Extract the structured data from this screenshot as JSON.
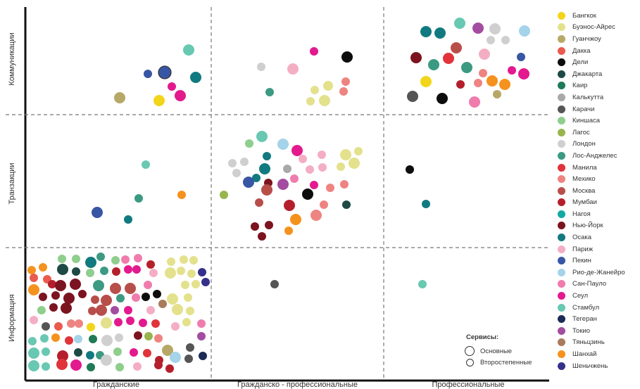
{
  "chart_data": {
    "type": "scatter",
    "x_categories": [
      "Гражданские",
      "Гражданско - профессиональные",
      "Профессиональные"
    ],
    "y_categories": [
      "Информация",
      "Транзакции",
      "Коммуникации"
    ],
    "grid": "dashed cell dividers",
    "legend_position": "right",
    "series": [
      {
        "name": "Бангкок",
        "color": "#f2d519"
      },
      {
        "name": "Буэнос-Айрес",
        "color": "#e3e18c"
      },
      {
        "name": "Гуанчжоу",
        "color": "#b7a867"
      },
      {
        "name": "Дакка",
        "color": "#ea5a4e"
      },
      {
        "name": "Дели",
        "color": "#0d0d0d"
      },
      {
        "name": "Джакарта",
        "color": "#1d4a44"
      },
      {
        "name": "Каир",
        "color": "#1f7a56"
      },
      {
        "name": "Калькутта",
        "color": "#a9a9a9"
      },
      {
        "name": "Карачи",
        "color": "#555555"
      },
      {
        "name": "Киншаса",
        "color": "#8fce8c"
      },
      {
        "name": "Лагос",
        "color": "#97b54c"
      },
      {
        "name": "Лондон",
        "color": "#cfcfcf"
      },
      {
        "name": "Лос-Анджелес",
        "color": "#3c9a82"
      },
      {
        "name": "Манила",
        "color": "#e0343a"
      },
      {
        "name": "Мехико",
        "color": "#ee8481"
      },
      {
        "name": "Москва",
        "color": "#b84e4a"
      },
      {
        "name": "Мумбаи",
        "color": "#b51f2c"
      },
      {
        "name": "Нагоя",
        "color": "#13a8a3"
      },
      {
        "name": "Нью-Йорк",
        "color": "#7b1420"
      },
      {
        "name": "Осака",
        "color": "#117a80"
      },
      {
        "name": "Париж",
        "color": "#f4aec4"
      },
      {
        "name": "Пекин",
        "color": "#3756a3"
      },
      {
        "name": "Рио-де-Жанейро",
        "color": "#a4d3ea"
      },
      {
        "name": "Сан-Пауло",
        "color": "#ef7cac"
      },
      {
        "name": "Сеул",
        "color": "#e3198e"
      },
      {
        "name": "Стамбул",
        "color": "#68c8b2"
      },
      {
        "name": "Тегеран",
        "color": "#1c2b55"
      },
      {
        "name": "Токио",
        "color": "#a34da0"
      },
      {
        "name": "Тяньцзинь",
        "color": "#a97a5b"
      },
      {
        "name": "Шанхай",
        "color": "#f5921e"
      },
      {
        "name": "Шеньчжень",
        "color": "#35318a"
      }
    ],
    "services_legend": {
      "title": "Сервисы:",
      "primary": "Основные",
      "secondary": "Второстепенные"
    }
  }
}
